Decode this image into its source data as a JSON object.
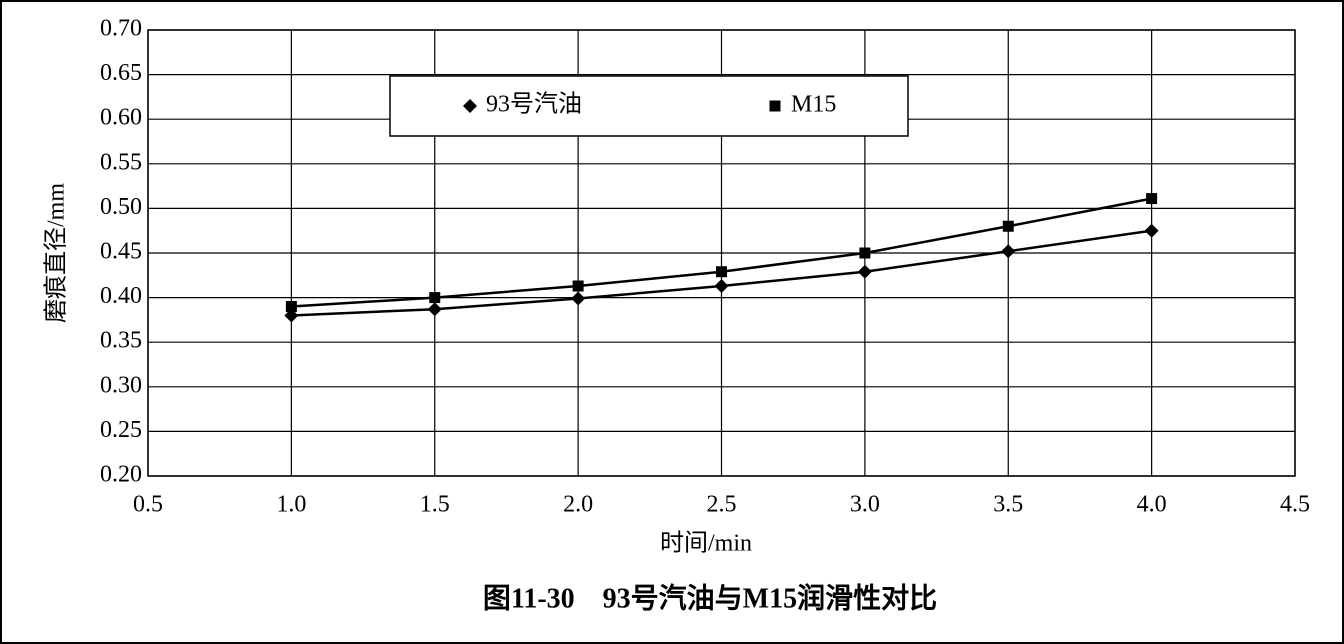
{
  "chart_data": {
    "type": "line",
    "title": "图11-30　93号汽油与M15润滑性对比",
    "x_label": "时间/min",
    "y_label": "磨痕直径/mm",
    "x": [
      1.0,
      1.5,
      2.0,
      2.5,
      3.0,
      3.5,
      4.0
    ],
    "series": [
      {
        "name": "93号汽油",
        "color": "#000000",
        "marker": "diamond",
        "values": [
          0.38,
          0.387,
          0.399,
          0.413,
          0.429,
          0.452,
          0.475
        ]
      },
      {
        "name": "M15",
        "color": "#000000",
        "marker": "square",
        "values": [
          0.39,
          0.4,
          0.413,
          0.429,
          0.45,
          0.48,
          0.511
        ]
      }
    ],
    "xlim": [
      0.5,
      4.5
    ],
    "xticks": [
      0.5,
      {
        "value": 1,
        "label": "1.0"
      },
      1.5,
      {
        "value": 2,
        "label": "2.0"
      },
      2.5,
      {
        "value": 3,
        "label": "3.0"
      },
      3.5,
      {
        "value": 4,
        "label": "4.0"
      },
      4.5
    ],
    "ylim": [
      0.2,
      0.7
    ],
    "yticks": [
      {
        "value": 0.2,
        "label": "0.20"
      },
      0.25,
      {
        "value": 0.3,
        "label": "0.30"
      },
      0.35,
      {
        "value": 0.4,
        "label": "0.40"
      },
      0.45,
      {
        "value": 0.5,
        "label": "0.50"
      },
      0.55,
      {
        "value": 0.6,
        "label": "0.60"
      },
      0.65,
      {
        "value": 0.7,
        "label": "0.70"
      }
    ],
    "grid": true,
    "legend": "top"
  }
}
